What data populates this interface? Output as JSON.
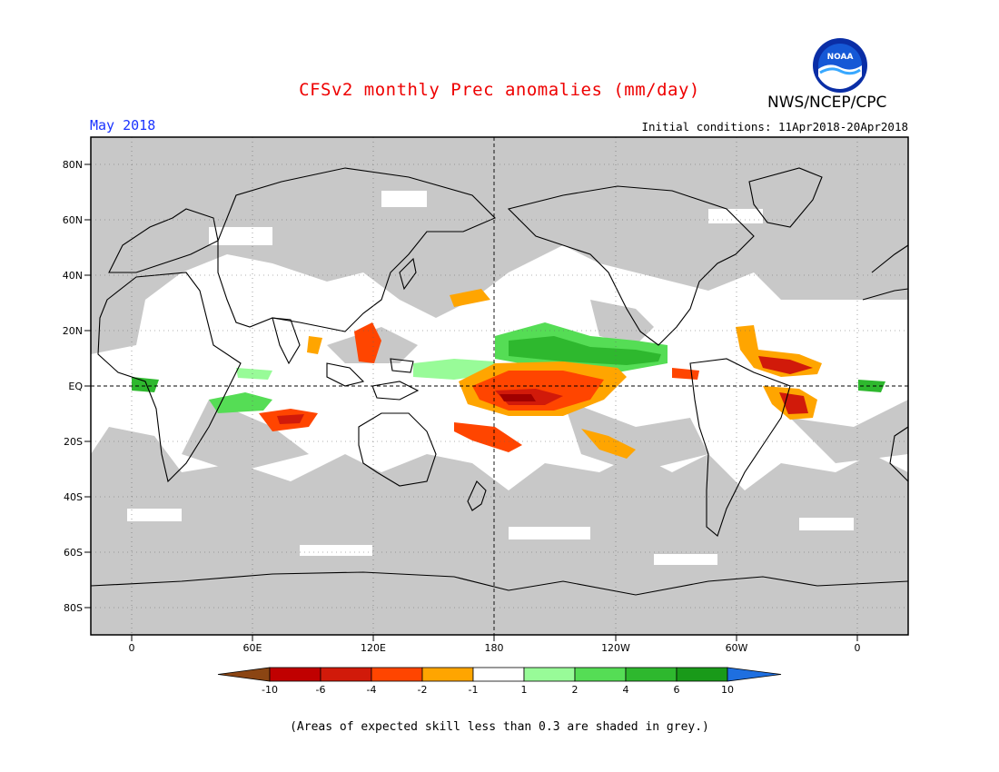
{
  "header": {
    "title": "CFSv2 monthly Prec anomalies (mm/day)",
    "agency": "NWS/NCEP/CPC",
    "period": "May 2018",
    "initial_conditions": "Initial conditions: 11Apr2018-20Apr2018",
    "logo_text": "NOAA"
  },
  "map": {
    "lat_labels": [
      "80N",
      "60N",
      "40N",
      "20N",
      "EQ",
      "20S",
      "40S",
      "60S",
      "80S"
    ],
    "lon_labels": [
      "0",
      "60E",
      "120E",
      "180",
      "120W",
      "60W",
      "0"
    ],
    "skill_mask_color": "#c8c8c8"
  },
  "colorbar": {
    "labels": [
      "-10",
      "-6",
      "-4",
      "-2",
      "-1",
      "1",
      "2",
      "4",
      "6",
      "10"
    ],
    "colors": [
      "#8b4513",
      "#c00000",
      "#d11a0a",
      "#ff4500",
      "#ffa500",
      "#ffffff",
      "#98fb98",
      "#55dd55",
      "#2eb82e",
      "#199a19",
      "#1e6fe0"
    ]
  },
  "footnote": "(Areas of expected skill less than 0.3 are shaded in grey.)"
}
